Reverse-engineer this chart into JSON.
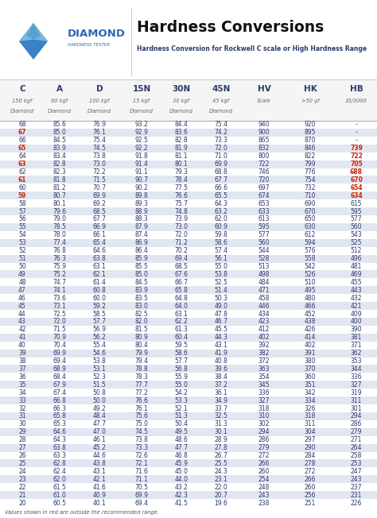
{
  "title": "Hardness Conversions",
  "subtitle": "Hardness Conversion for Rockwell C scale or High Hardness Range",
  "columns": [
    "C",
    "A",
    "D",
    "15N",
    "30N",
    "45N",
    "HV",
    "HK",
    "HB"
  ],
  "col_sub1": [
    "150 kgf",
    "60 kgf",
    "100 kgf",
    "15 kgf",
    "30 kgf",
    "45 kgf",
    "Scale",
    ">50 gf",
    "10/3000"
  ],
  "col_sub2": [
    "Diamond",
    "Diamond",
    "Diamond",
    "Diamond",
    "Diamond",
    "Diamond",
    "",
    "",
    ""
  ],
  "rows": [
    [
      68,
      85.6,
      76.9,
      93.2,
      84.4,
      75.4,
      940,
      920,
      "-"
    ],
    [
      67,
      85.0,
      76.1,
      92.9,
      83.6,
      74.2,
      900,
      895,
      "-"
    ],
    [
      66,
      84.5,
      75.4,
      92.5,
      82.8,
      73.3,
      865,
      870,
      "-"
    ],
    [
      65,
      83.9,
      74.5,
      92.2,
      81.9,
      72.0,
      832,
      846,
      "739"
    ],
    [
      64,
      83.4,
      73.8,
      91.8,
      81.1,
      71.0,
      800,
      822,
      "722"
    ],
    [
      63,
      82.8,
      73.0,
      91.4,
      80.1,
      69.9,
      722,
      799,
      "705"
    ],
    [
      62,
      82.3,
      72.2,
      91.1,
      79.3,
      68.8,
      746,
      776,
      "688"
    ],
    [
      61,
      81.8,
      71.5,
      90.7,
      78.4,
      67.7,
      720,
      754,
      "670"
    ],
    [
      60,
      81.2,
      70.7,
      90.2,
      77.5,
      66.6,
      697,
      732,
      "654"
    ],
    [
      59,
      80.7,
      69.9,
      89.8,
      76.6,
      65.5,
      674,
      710,
      "634"
    ],
    [
      58,
      80.1,
      69.2,
      89.3,
      75.7,
      64.3,
      653,
      690,
      615
    ],
    [
      57,
      79.6,
      68.5,
      88.9,
      74.8,
      63.2,
      633,
      670,
      595
    ],
    [
      56,
      79.0,
      67.7,
      88.3,
      73.9,
      62.0,
      613,
      650,
      577
    ],
    [
      55,
      78.5,
      66.9,
      87.9,
      73.0,
      60.9,
      595,
      630,
      560
    ],
    [
      54,
      78.0,
      66.1,
      87.4,
      72.0,
      59.8,
      577,
      612,
      543
    ],
    [
      53,
      77.4,
      65.4,
      86.9,
      71.2,
      58.6,
      560,
      594,
      525
    ],
    [
      52,
      76.8,
      64.6,
      86.4,
      70.2,
      57.4,
      544,
      576,
      512
    ],
    [
      51,
      76.3,
      63.8,
      85.9,
      69.4,
      56.1,
      528,
      558,
      496
    ],
    [
      50,
      75.9,
      63.1,
      85.5,
      68.5,
      55.0,
      513,
      542,
      481
    ],
    [
      49,
      75.2,
      62.1,
      85.0,
      67.6,
      53.8,
      498,
      526,
      469
    ],
    [
      48,
      74.7,
      61.4,
      84.5,
      66.7,
      52.5,
      484,
      510,
      455
    ],
    [
      47,
      74.1,
      60.8,
      83.9,
      65.8,
      51.4,
      471,
      495,
      443
    ],
    [
      46,
      73.6,
      60.0,
      83.5,
      64.8,
      50.3,
      458,
      480,
      432
    ],
    [
      45,
      73.1,
      59.2,
      83.0,
      64.0,
      49.0,
      446,
      466,
      421
    ],
    [
      44,
      72.5,
      58.5,
      82.5,
      63.1,
      47.8,
      434,
      452,
      409
    ],
    [
      43,
      72.0,
      57.7,
      82.0,
      62.2,
      46.7,
      423,
      438,
      400
    ],
    [
      42,
      71.5,
      56.9,
      81.5,
      61.3,
      45.5,
      412,
      426,
      390
    ],
    [
      41,
      70.9,
      56.2,
      80.9,
      60.4,
      44.3,
      402,
      414,
      381
    ],
    [
      40,
      70.4,
      55.4,
      80.4,
      59.5,
      43.1,
      392,
      402,
      371
    ],
    [
      39,
      69.9,
      54.6,
      79.9,
      58.6,
      41.9,
      382,
      391,
      362
    ],
    [
      38,
      69.4,
      53.8,
      79.4,
      57.7,
      40.8,
      372,
      380,
      353
    ],
    [
      37,
      68.9,
      53.1,
      78.8,
      56.8,
      39.6,
      363,
      370,
      344
    ],
    [
      36,
      68.4,
      52.3,
      78.3,
      55.9,
      38.4,
      354,
      360,
      336
    ],
    [
      35,
      67.9,
      51.5,
      77.7,
      55.0,
      37.2,
      345,
      351,
      327
    ],
    [
      34,
      67.4,
      50.8,
      77.2,
      54.2,
      36.1,
      336,
      342,
      319
    ],
    [
      33,
      66.8,
      50.0,
      76.6,
      53.3,
      34.9,
      327,
      334,
      311
    ],
    [
      32,
      66.3,
      49.2,
      76.1,
      52.1,
      33.7,
      318,
      326,
      301
    ],
    [
      31,
      65.8,
      48.4,
      75.6,
      51.3,
      32.5,
      310,
      318,
      294
    ],
    [
      30,
      65.3,
      47.7,
      75.0,
      50.4,
      31.3,
      302,
      311,
      286
    ],
    [
      29,
      64.6,
      47.0,
      74.5,
      49.5,
      30.1,
      294,
      304,
      279
    ],
    [
      28,
      64.3,
      46.1,
      73.8,
      48.6,
      28.9,
      286,
      297,
      271
    ],
    [
      27,
      63.8,
      45.2,
      73.3,
      47.7,
      27.8,
      279,
      290,
      264
    ],
    [
      26,
      63.3,
      44.6,
      72.6,
      46.8,
      26.7,
      272,
      284,
      258
    ],
    [
      25,
      62.8,
      43.8,
      72.1,
      45.9,
      25.5,
      266,
      278,
      253
    ],
    [
      24,
      62.4,
      43.1,
      71.6,
      45.0,
      24.3,
      260,
      272,
      247
    ],
    [
      23,
      62.0,
      42.1,
      71.1,
      44.0,
      23.1,
      254,
      266,
      243
    ],
    [
      22,
      61.5,
      41.6,
      70.5,
      43.2,
      22.0,
      248,
      260,
      237
    ],
    [
      21,
      61.0,
      40.9,
      69.9,
      42.3,
      20.7,
      243,
      256,
      231
    ],
    [
      20,
      60.5,
      40.1,
      69.4,
      41.5,
      19.6,
      238,
      251,
      226
    ]
  ],
  "red_c_vals": [
    67,
    65,
    63,
    61,
    59
  ],
  "red_hb_c_vals": [
    65,
    64,
    63,
    62,
    61,
    60,
    59
  ],
  "footer": "Values shown in red are outside the recommended range.",
  "text_color_main": "#2a3a6b",
  "text_color_red": "#cc2200",
  "shade_color": "#e2e6f0",
  "header_shade": "#eeeeee",
  "diamond_blue": "#3a82c4",
  "diamond_light": "#7ab8e0",
  "brand_blue": "#2a6ab5"
}
